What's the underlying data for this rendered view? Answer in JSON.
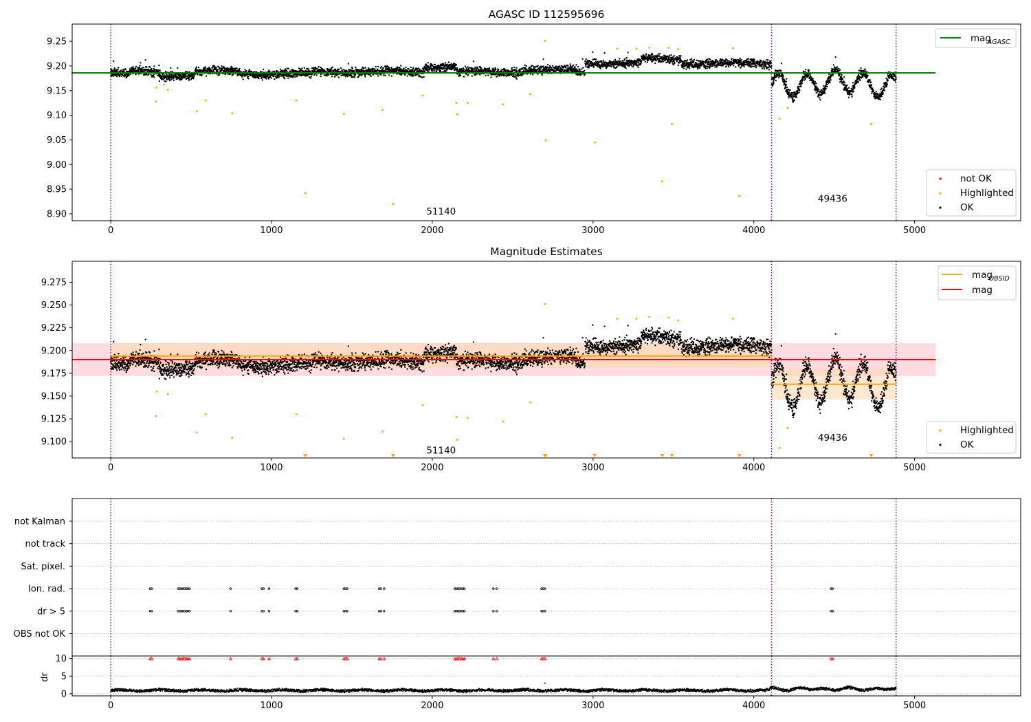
{
  "chart_data": [
    {
      "id": "agasc",
      "type": "scatter",
      "title": "AGASC ID 112595696",
      "xlim": [
        -240,
        5660
      ],
      "ylim": [
        8.886,
        9.285
      ],
      "xticks": [
        0,
        1000,
        2000,
        3000,
        4000,
        5000
      ],
      "yticks": [
        8.9,
        8.95,
        9.0,
        9.05,
        9.1,
        9.15,
        9.2,
        9.25
      ],
      "ytick_labels": [
        "8.90",
        "8.95",
        "9.00",
        "9.05",
        "9.10",
        "9.15",
        "9.20",
        "9.25"
      ],
      "vlines": [
        0,
        4110,
        4885
      ],
      "hline": {
        "name": "mag_AGASC",
        "y": 9.186,
        "x": [
          0,
          5130
        ],
        "color": "#008000"
      },
      "annotations": [
        {
          "text": "51140",
          "x": 2055,
          "y": 8.904
        },
        {
          "text": "49436",
          "x": 4490,
          "y": 8.93
        }
      ],
      "legend_top": [
        {
          "label": "mag",
          "sub": "AGASC",
          "kind": "line",
          "color": "#008000"
        }
      ],
      "legend_bottom": [
        {
          "label": "not OK",
          "kind": "dot",
          "color": "#ff0000"
        },
        {
          "label": "Highlighted",
          "kind": "dot",
          "color": "#ffa500"
        },
        {
          "label": "OK",
          "kind": "dot",
          "color": "#000000"
        }
      ],
      "highlighted_points": [
        [
          280,
          9.128
        ],
        [
          285,
          9.156
        ],
        [
          330,
          9.162
        ],
        [
          355,
          9.152
        ],
        [
          535,
          9.108
        ],
        [
          590,
          9.13
        ],
        [
          755,
          9.104
        ],
        [
          1155,
          9.13
        ],
        [
          1210,
          8.942
        ],
        [
          1450,
          9.103
        ],
        [
          1690,
          9.111
        ],
        [
          1755,
          8.92
        ],
        [
          1940,
          9.14
        ],
        [
          2150,
          9.125
        ],
        [
          2155,
          9.102
        ],
        [
          2220,
          9.125
        ],
        [
          2440,
          9.122
        ],
        [
          2610,
          9.143
        ],
        [
          2700,
          9.251
        ],
        [
          2705,
          9.049
        ],
        [
          3010,
          9.045
        ],
        [
          3150,
          9.235
        ],
        [
          3270,
          9.235
        ],
        [
          3350,
          9.237
        ],
        [
          3430,
          8.966
        ],
        [
          3470,
          9.237
        ],
        [
          3490,
          9.082
        ],
        [
          3530,
          9.234
        ],
        [
          3870,
          9.236
        ],
        [
          3910,
          8.936
        ],
        [
          4160,
          9.093
        ],
        [
          4210,
          9.115
        ],
        [
          4730,
          9.082
        ]
      ]
    },
    {
      "id": "mag_estimates",
      "type": "scatter",
      "title": "Magnitude Estimates",
      "xlim": [
        -240,
        5660
      ],
      "ylim": [
        9.082,
        9.298
      ],
      "xticks": [
        0,
        1000,
        2000,
        3000,
        4000,
        5000
      ],
      "yticks": [
        9.1,
        9.125,
        9.15,
        9.175,
        9.2,
        9.225,
        9.25,
        9.275
      ],
      "ytick_labels": [
        "9.100",
        "9.125",
        "9.150",
        "9.175",
        "9.200",
        "9.225",
        "9.250",
        "9.275"
      ],
      "vlines": [
        0,
        4110,
        4885
      ],
      "mag_line": {
        "name": "mag",
        "y": 9.19,
        "band": [
          9.172,
          9.208
        ],
        "x": [
          -240,
          5130
        ],
        "color": "#ff0000"
      },
      "obsid_segments": [
        {
          "x": [
            0,
            4110
          ],
          "y": 9.194,
          "band": [
            9.181,
            9.208
          ]
        },
        {
          "x": [
            4110,
            4885
          ],
          "y": 9.163,
          "band": [
            9.146,
            9.18
          ]
        }
      ],
      "annotations": [
        {
          "text": "51140",
          "x": 2055,
          "y": 9.09
        },
        {
          "text": "49436",
          "x": 4490,
          "y": 9.104
        }
      ],
      "legend_top": [
        {
          "label": "mag",
          "sub": "OBSID",
          "kind": "line",
          "color": "#ffa500"
        },
        {
          "label": "mag",
          "sub": "",
          "kind": "line",
          "color": "#ff0000"
        }
      ],
      "legend_bottom": [
        {
          "label": "Highlighted",
          "kind": "dot",
          "color": "#ffa500"
        },
        {
          "label": "OK",
          "kind": "dot",
          "color": "#000000"
        }
      ],
      "highlighted_points": [
        [
          280,
          9.128
        ],
        [
          285,
          9.155
        ],
        [
          355,
          9.152
        ],
        [
          535,
          9.11
        ],
        [
          590,
          9.13
        ],
        [
          755,
          9.104
        ],
        [
          1155,
          9.13
        ],
        [
          1450,
          9.103
        ],
        [
          1690,
          9.111
        ],
        [
          1940,
          9.14
        ],
        [
          2150,
          9.127
        ],
        [
          2155,
          9.102
        ],
        [
          2220,
          9.126
        ],
        [
          2440,
          9.122
        ],
        [
          2610,
          9.143
        ],
        [
          2700,
          9.251
        ],
        [
          3150,
          9.235
        ],
        [
          3270,
          9.235
        ],
        [
          3350,
          9.237
        ],
        [
          3470,
          9.236
        ],
        [
          3530,
          9.233
        ],
        [
          3870,
          9.235
        ],
        [
          4160,
          9.093
        ],
        [
          4210,
          9.115
        ]
      ],
      "offscale_points": [
        1210,
        1755,
        2700,
        2705,
        3010,
        3430,
        3490,
        3910,
        4730
      ]
    },
    {
      "id": "flags",
      "type": "scatter",
      "title": "",
      "xlim": [
        -240,
        5660
      ],
      "xticks": [
        0,
        1000,
        2000,
        3000,
        4000,
        5000
      ],
      "vlines": [
        0,
        4110,
        4885
      ],
      "categories": [
        "not Kalman",
        "not track",
        "Sat. pixel.",
        "Ion. rad.",
        "dr > 5",
        "OBS not OK"
      ],
      "flag_points": {
        "Ion. rad.": [
          245,
          255,
          420,
          430,
          440,
          450,
          460,
          470,
          480,
          490,
          745,
          940,
          950,
          985,
          1150,
          1160,
          1450,
          1460,
          1470,
          1670,
          1680,
          1700,
          2140,
          2150,
          2160,
          2170,
          2180,
          2190,
          2200,
          2380,
          2400,
          2680,
          2690,
          2700,
          4480,
          4490
        ],
        "dr > 5": [
          245,
          255,
          420,
          430,
          440,
          450,
          460,
          470,
          480,
          490,
          745,
          940,
          950,
          985,
          1150,
          1160,
          1450,
          1460,
          1470,
          1670,
          1680,
          1700,
          2140,
          2150,
          2160,
          2170,
          2180,
          2190,
          2200,
          2380,
          2400,
          2680,
          2690,
          2700,
          4480,
          4490
        ]
      }
    },
    {
      "id": "dr",
      "type": "scatter",
      "ylabel": "dr",
      "xlim": [
        -240,
        5660
      ],
      "ylim": [
        -0.6,
        10.7
      ],
      "xticks": [
        0,
        1000,
        2000,
        3000,
        4000,
        5000
      ],
      "yticks": [
        0,
        5,
        10
      ],
      "ytick_labels": [
        "0",
        "5",
        "10"
      ],
      "vlines": [
        0,
        4110,
        4885
      ],
      "clipped_marker_y": 9.9,
      "clipped_points": [
        245,
        255,
        420,
        430,
        440,
        450,
        460,
        470,
        480,
        490,
        745,
        940,
        950,
        985,
        1150,
        1160,
        1450,
        1460,
        1470,
        1670,
        1680,
        1700,
        2140,
        2150,
        2160,
        2170,
        2180,
        2190,
        2200,
        2380,
        2400,
        2680,
        2690,
        2700,
        4480,
        4490
      ],
      "red_points": [
        [
          2700,
          3.0
        ]
      ],
      "typical_range": [
        0,
        1.8
      ]
    }
  ],
  "colors": {
    "ok": "#000000",
    "highlighted": "#ffa500",
    "not_ok": "#ff0000",
    "agasc": "#008000",
    "obsid": "#ffa500",
    "mag": "#ff0000",
    "vline": "#800080",
    "grid": "#b0b0b0",
    "mag_band": "#ffc0cb",
    "obsid_band": "#ffd8b0"
  }
}
